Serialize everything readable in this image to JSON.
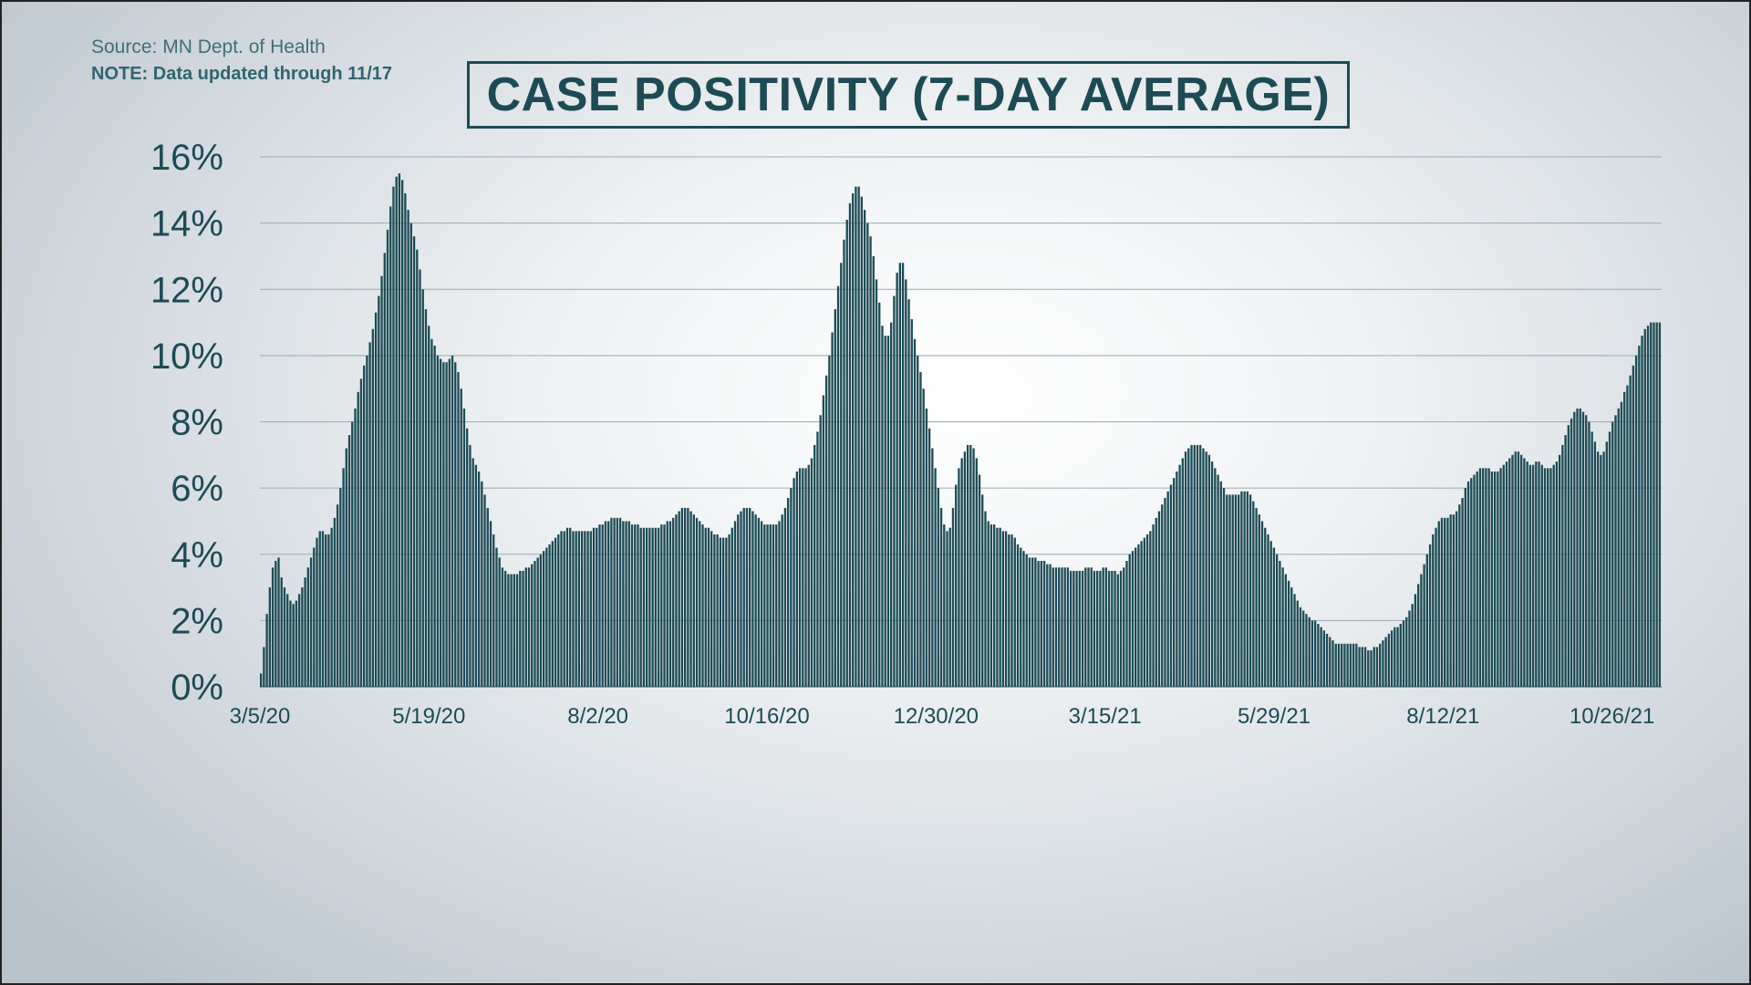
{
  "source_text": "Source: MN Dept. of Health",
  "note_text": "NOTE: Data updated through 11/17",
  "colors": {
    "bar": "#1c4b55",
    "text": "#1c4b55",
    "grid": "#9aa9b1"
  },
  "chart_data": {
    "type": "bar",
    "title": "CASE POSITIVITY (7-DAY AVERAGE)",
    "xlabel": "",
    "ylabel": "",
    "ylim": [
      0,
      16
    ],
    "y_ticks": [
      0,
      2,
      4,
      6,
      8,
      10,
      12,
      14,
      16
    ],
    "y_tick_labels": [
      "0%",
      "2%",
      "4%",
      "6%",
      "8%",
      "10%",
      "12%",
      "14%",
      "16%"
    ],
    "grid": true,
    "x_tick_labels": [
      "3/5/20",
      "5/19/20",
      "8/2/20",
      "10/16/20",
      "12/30/20",
      "3/15/21",
      "5/29/21",
      "8/12/21",
      "10/26/21"
    ],
    "x_tick_dates": [
      "2020-03-05",
      "2020-05-19",
      "2020-08-02",
      "2020-10-16",
      "2020-12-30",
      "2021-03-15",
      "2021-05-29",
      "2021-08-12",
      "2021-10-26"
    ],
    "start_date": "2020-03-05",
    "end_date": "2021-11-17",
    "series": [
      {
        "values": [
          0.4,
          1.2,
          2.2,
          3.0,
          3.6,
          3.8,
          3.9,
          3.3,
          3.0,
          2.8,
          2.6,
          2.5,
          2.6,
          2.8,
          3.0,
          3.3,
          3.6,
          3.9,
          4.2,
          4.5,
          4.7,
          4.7,
          4.6,
          4.6,
          4.8,
          5.1,
          5.5,
          6.0,
          6.6,
          7.2,
          7.6,
          8.0,
          8.4,
          8.9,
          9.3,
          9.7,
          10.0,
          10.4,
          10.8,
          11.3,
          11.8,
          12.4,
          13.1,
          13.8,
          14.5,
          15.1,
          15.4,
          15.5,
          15.3,
          14.9,
          14.4,
          14.0,
          13.6,
          13.2,
          12.6,
          12.0,
          11.4,
          10.9,
          10.5,
          10.3,
          10.0,
          9.9,
          9.8,
          9.8,
          9.9,
          10.0,
          9.8,
          9.5,
          9.0,
          8.4,
          7.8,
          7.3,
          6.9,
          6.7,
          6.5,
          6.2,
          5.8,
          5.4,
          5.0,
          4.6,
          4.2,
          3.9,
          3.6,
          3.5,
          3.4,
          3.4,
          3.4,
          3.4,
          3.5,
          3.5,
          3.6,
          3.6,
          3.7,
          3.8,
          3.9,
          4.0,
          4.1,
          4.2,
          4.3,
          4.4,
          4.5,
          4.6,
          4.7,
          4.7,
          4.8,
          4.8,
          4.7,
          4.7,
          4.7,
          4.7,
          4.7,
          4.7,
          4.7,
          4.8,
          4.8,
          4.9,
          4.9,
          5.0,
          5.0,
          5.1,
          5.1,
          5.1,
          5.1,
          5.0,
          5.0,
          5.0,
          4.9,
          4.9,
          4.9,
          4.8,
          4.8,
          4.8,
          4.8,
          4.8,
          4.8,
          4.8,
          4.9,
          4.9,
          5.0,
          5.0,
          5.1,
          5.2,
          5.3,
          5.4,
          5.4,
          5.4,
          5.3,
          5.2,
          5.1,
          5.0,
          4.9,
          4.8,
          4.8,
          4.7,
          4.6,
          4.6,
          4.5,
          4.5,
          4.5,
          4.6,
          4.8,
          5.0,
          5.2,
          5.3,
          5.4,
          5.4,
          5.4,
          5.3,
          5.2,
          5.1,
          5.0,
          4.9,
          4.9,
          4.9,
          4.9,
          4.9,
          5.0,
          5.2,
          5.4,
          5.7,
          6.0,
          6.3,
          6.5,
          6.6,
          6.6,
          6.6,
          6.7,
          6.9,
          7.3,
          7.7,
          8.2,
          8.8,
          9.4,
          10.0,
          10.7,
          11.4,
          12.1,
          12.8,
          13.5,
          14.1,
          14.6,
          14.9,
          15.1,
          15.1,
          14.8,
          14.4,
          14.0,
          13.6,
          13.0,
          12.3,
          11.6,
          10.9,
          10.6,
          10.6,
          11.0,
          11.8,
          12.5,
          12.8,
          12.8,
          12.3,
          11.7,
          11.1,
          10.5,
          10.0,
          9.5,
          9.0,
          8.4,
          7.8,
          7.2,
          6.6,
          6.0,
          5.4,
          4.9,
          4.7,
          4.8,
          5.4,
          6.1,
          6.6,
          6.9,
          7.1,
          7.3,
          7.3,
          7.2,
          6.9,
          6.4,
          5.8,
          5.3,
          5.0,
          4.9,
          4.9,
          4.8,
          4.8,
          4.7,
          4.7,
          4.6,
          4.6,
          4.5,
          4.3,
          4.2,
          4.1,
          4.0,
          3.9,
          3.9,
          3.9,
          3.8,
          3.8,
          3.8,
          3.7,
          3.7,
          3.6,
          3.6,
          3.6,
          3.6,
          3.6,
          3.6,
          3.5,
          3.5,
          3.5,
          3.5,
          3.5,
          3.6,
          3.6,
          3.6,
          3.5,
          3.5,
          3.5,
          3.6,
          3.6,
          3.5,
          3.5,
          3.5,
          3.4,
          3.5,
          3.6,
          3.8,
          4.0,
          4.1,
          4.2,
          4.3,
          4.4,
          4.5,
          4.6,
          4.7,
          4.9,
          5.1,
          5.3,
          5.5,
          5.7,
          5.9,
          6.1,
          6.3,
          6.5,
          6.7,
          6.9,
          7.1,
          7.2,
          7.3,
          7.3,
          7.3,
          7.3,
          7.2,
          7.1,
          7.0,
          6.8,
          6.6,
          6.4,
          6.2,
          6.0,
          5.8,
          5.8,
          5.8,
          5.8,
          5.8,
          5.9,
          5.9,
          5.9,
          5.8,
          5.6,
          5.4,
          5.2,
          5.0,
          4.8,
          4.6,
          4.4,
          4.2,
          4.0,
          3.8,
          3.6,
          3.4,
          3.2,
          3.0,
          2.8,
          2.6,
          2.4,
          2.3,
          2.2,
          2.1,
          2.0,
          2.0,
          1.9,
          1.8,
          1.7,
          1.6,
          1.5,
          1.4,
          1.3,
          1.3,
          1.3,
          1.3,
          1.3,
          1.3,
          1.3,
          1.3,
          1.2,
          1.2,
          1.2,
          1.1,
          1.1,
          1.2,
          1.2,
          1.3,
          1.4,
          1.5,
          1.6,
          1.7,
          1.8,
          1.8,
          1.9,
          2.0,
          2.1,
          2.3,
          2.5,
          2.8,
          3.1,
          3.4,
          3.7,
          4.0,
          4.3,
          4.6,
          4.8,
          5.0,
          5.1,
          5.1,
          5.1,
          5.2,
          5.2,
          5.3,
          5.5,
          5.7,
          6.0,
          6.2,
          6.3,
          6.4,
          6.5,
          6.6,
          6.6,
          6.6,
          6.6,
          6.5,
          6.5,
          6.5,
          6.6,
          6.7,
          6.8,
          6.9,
          7.0,
          7.1,
          7.1,
          7.0,
          6.9,
          6.8,
          6.7,
          6.7,
          6.8,
          6.8,
          6.7,
          6.6,
          6.6,
          6.6,
          6.7,
          6.8,
          7.0,
          7.3,
          7.6,
          7.9,
          8.1,
          8.3,
          8.4,
          8.4,
          8.3,
          8.2,
          8.0,
          7.7,
          7.4,
          7.1,
          7.0,
          7.1,
          7.4,
          7.7,
          8.0,
          8.2,
          8.4,
          8.6,
          8.9,
          9.1,
          9.4,
          9.7,
          10.0,
          10.3,
          10.6,
          10.8,
          10.9,
          11.0,
          11.0,
          11.0,
          11.0
        ]
      }
    ]
  }
}
